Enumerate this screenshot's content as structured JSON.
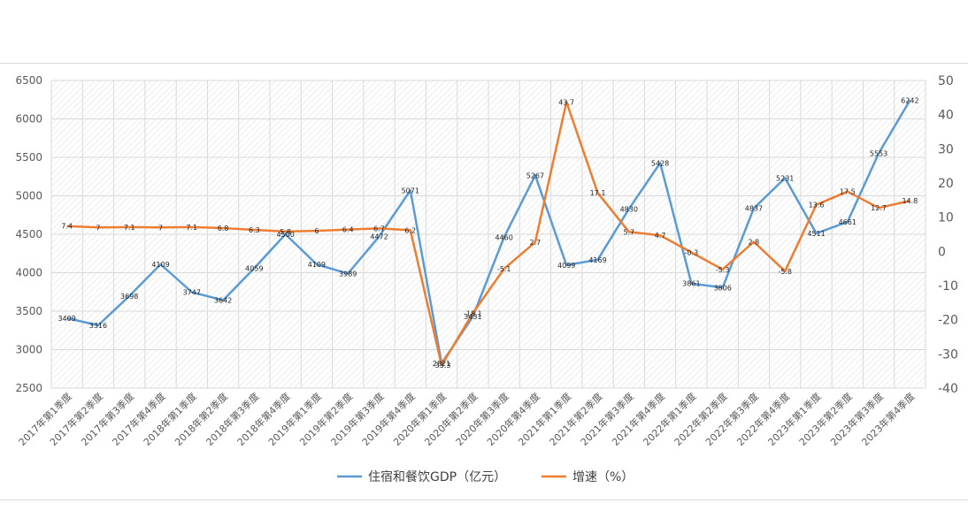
{
  "colors": {
    "gdp": "#5b9bd5",
    "growth": "#ed7d31",
    "grid": "#d9d9d9",
    "axis_text": "#595959"
  },
  "chart_data": {
    "type": "line",
    "categories": [
      "2017年第1季度",
      "2017年第2季度",
      "2017年第3季度",
      "2017年第4季度",
      "2018年第1季度",
      "2018年第2季度",
      "2018年第3季度",
      "2018年第4季度",
      "2019年第1季度",
      "2019年第2季度",
      "2019年第3季度",
      "2019年第4季度",
      "2020年第1季度",
      "2020年第2季度",
      "2020年第3季度",
      "2020年第4季度",
      "2021年第1季度",
      "2021年第2季度",
      "2021年第3季度",
      "2021年第4季度",
      "2022年第1季度",
      "2022年第2季度",
      "2022年第3季度",
      "2022年第4季度",
      "2023年第1季度",
      "2023年第2季度",
      "2023年第3季度",
      "2023年第4季度"
    ],
    "series": [
      {
        "name": "住宿和餐饮GDP（亿元）",
        "axis": "left",
        "values": [
          3409,
          3316,
          3698,
          4109,
          3747,
          3642,
          4059,
          4500,
          4109,
          3989,
          4472,
          5071,
          2821,
          3431,
          4460,
          5267,
          4099,
          4169,
          4830,
          5428,
          3861,
          3806,
          4837,
          5231,
          4511,
          4661,
          5553,
          6242
        ]
      },
      {
        "name": "增速（%）",
        "axis": "right",
        "values": [
          7.4,
          7,
          7.1,
          7,
          7.1,
          6.8,
          6.3,
          5.8,
          6,
          6.4,
          6.7,
          6.2,
          -33.3,
          -18.1,
          -5.1,
          2.7,
          43.7,
          17.1,
          5.7,
          4.7,
          -0.3,
          -5.3,
          2.8,
          -5.8,
          13.6,
          17.5,
          12.7,
          14.8
        ]
      }
    ],
    "y_left": {
      "range": [
        2500,
        6500
      ],
      "ticks": [
        2500,
        3000,
        3500,
        4000,
        4500,
        5000,
        5500,
        6000,
        6500
      ]
    },
    "y_right": {
      "range": [
        -40,
        50
      ],
      "ticks": [
        -40,
        -30,
        -20,
        -10,
        0,
        10,
        20,
        30,
        40,
        50
      ]
    },
    "grid": true,
    "legend_position": "bottom"
  }
}
